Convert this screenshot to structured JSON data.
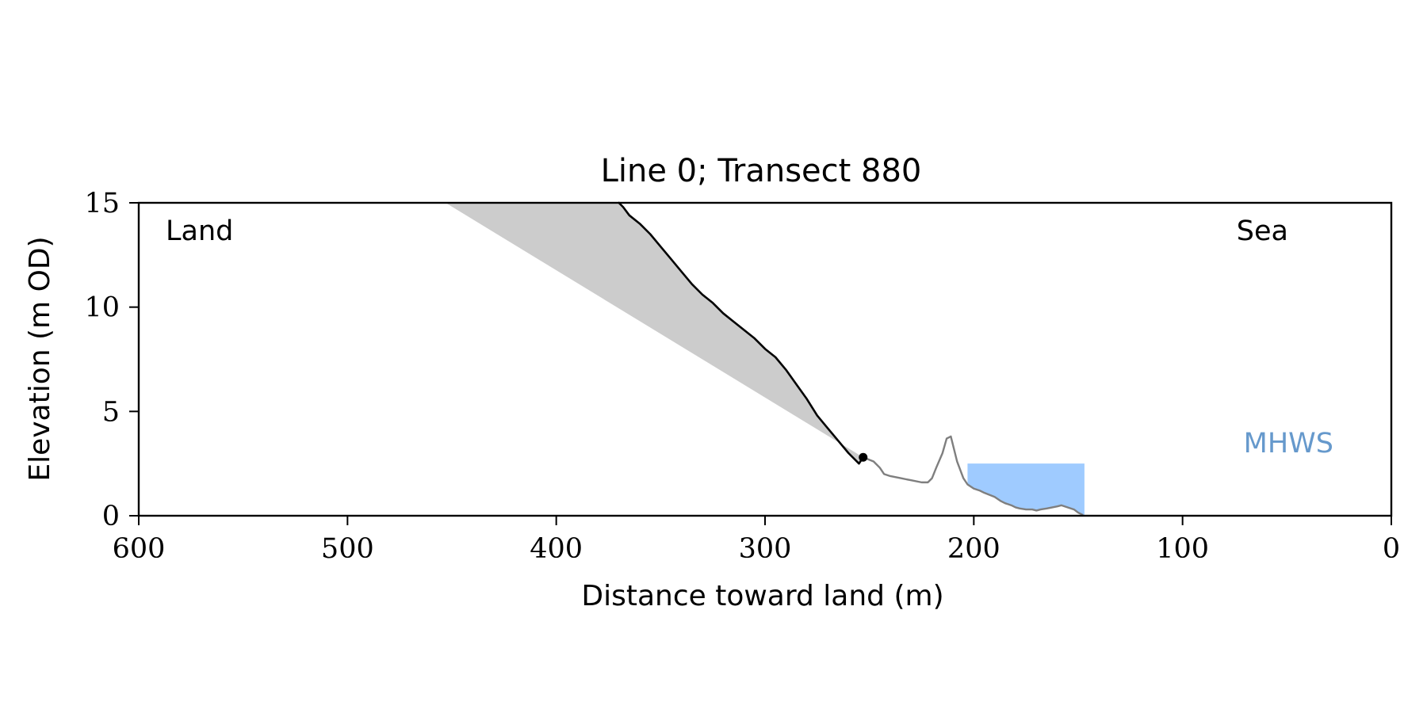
{
  "chart_data": {
    "type": "line",
    "title": "Line 0; Transect 880",
    "xlabel": "Distance toward land (m)",
    "ylabel": "Elevation (m OD)",
    "xlim": [
      600,
      0
    ],
    "ylim": [
      0,
      15
    ],
    "x_ticks": [
      600,
      500,
      400,
      300,
      200,
      100,
      0
    ],
    "y_ticks": [
      0,
      5,
      10,
      15
    ],
    "x_tick_labels": [
      "600",
      "500",
      "400",
      "300",
      "200",
      "100",
      "0"
    ],
    "y_tick_labels": [
      "0",
      "5",
      "10",
      "15"
    ],
    "grid": false,
    "legend": null,
    "annotations": {
      "land": "Land",
      "sea": "Sea",
      "mhws": "MHWS"
    },
    "colors": {
      "profile_land": "#000000",
      "profile_sea": "#7f7f7f",
      "shaded_region": "#cccccc",
      "mhws": "#6699cc",
      "water_fill": "#9fcbff"
    },
    "series": [
      {
        "role": "landward-profile",
        "color": "#000000",
        "x": [
          370,
          368,
          365,
          360,
          355,
          350,
          345,
          340,
          335,
          330,
          325,
          320,
          315,
          310,
          305,
          300,
          295,
          290,
          285,
          280,
          275,
          270,
          265,
          260,
          255,
          253
        ],
        "y": [
          15,
          14.8,
          14.4,
          14.0,
          13.5,
          12.9,
          12.3,
          11.7,
          11.1,
          10.6,
          10.2,
          9.7,
          9.3,
          8.9,
          8.5,
          8.0,
          7.6,
          7.0,
          6.3,
          5.6,
          4.8,
          4.2,
          3.6,
          3.0,
          2.5,
          2.8
        ]
      },
      {
        "role": "seaward-profile",
        "color": "#7f7f7f",
        "x": [
          253,
          248,
          245,
          243,
          240,
          235,
          230,
          225,
          222,
          220,
          218,
          215,
          213,
          211,
          210,
          208,
          205,
          203,
          200,
          197,
          195,
          190,
          187,
          185,
          182,
          180,
          178,
          175,
          172,
          170,
          168,
          165,
          160,
          158,
          155,
          152,
          150,
          148
        ],
        "y": [
          2.8,
          2.6,
          2.3,
          2.0,
          1.9,
          1.8,
          1.7,
          1.6,
          1.6,
          1.8,
          2.3,
          3.0,
          3.7,
          3.8,
          3.4,
          2.6,
          1.8,
          1.5,
          1.3,
          1.2,
          1.1,
          0.9,
          0.7,
          0.6,
          0.5,
          0.4,
          0.35,
          0.3,
          0.3,
          0.25,
          0.3,
          0.35,
          0.45,
          0.5,
          0.4,
          0.3,
          0.15,
          0.05
        ]
      }
    ],
    "shaded_region": {
      "top_edge": {
        "x": [
          453,
          370
        ],
        "y": [
          15,
          15
        ]
      },
      "lower_edge": {
        "x": [
          453,
          253
        ],
        "y": [
          15,
          2.8
        ]
      }
    },
    "marker_point": {
      "x": 253,
      "y": 2.8
    },
    "water_fill": {
      "x_start": 203,
      "x_end": 147,
      "y_level": 2.5,
      "bed_x": [
        203,
        200,
        197,
        195,
        190,
        187,
        185,
        182,
        180,
        178,
        175,
        172,
        170,
        168,
        165,
        160,
        158,
        155,
        152,
        150,
        148,
        147
      ],
      "bed_y": [
        1.5,
        1.3,
        1.2,
        1.1,
        0.9,
        0.7,
        0.6,
        0.5,
        0.4,
        0.35,
        0.3,
        0.3,
        0.25,
        0.3,
        0.35,
        0.45,
        0.5,
        0.4,
        0.3,
        0.15,
        0.05,
        0.0
      ]
    }
  }
}
